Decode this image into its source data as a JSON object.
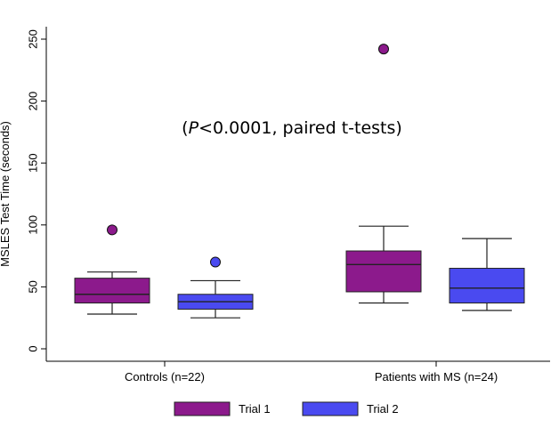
{
  "chart_data": {
    "type": "box",
    "ylabel": "MSLES Test Time (seconds)",
    "ylim": [
      0,
      260
    ],
    "yticks": [
      0,
      50,
      100,
      150,
      200,
      250
    ],
    "categories": [
      "Controls (n=22)",
      "Patients with MS (n=24)"
    ],
    "annotation": {
      "prefix": "(",
      "italic": "P",
      "suffix": "<0.0001, paired t-tests)"
    },
    "series": [
      {
        "name": "Trial 1",
        "color": "#8c1a8c",
        "boxes": [
          {
            "whisker_low": 28,
            "q1": 37,
            "median": 44,
            "q3": 57,
            "whisker_high": 62,
            "outliers": [
              96
            ]
          },
          {
            "whisker_low": 37,
            "q1": 46,
            "median": 68,
            "q3": 79,
            "whisker_high": 99,
            "outliers": [
              242
            ]
          }
        ]
      },
      {
        "name": "Trial 2",
        "color": "#4a4af0",
        "boxes": [
          {
            "whisker_low": 25,
            "q1": 32,
            "median": 38,
            "q3": 44,
            "whisker_high": 55,
            "outliers": [
              70
            ]
          },
          {
            "whisker_low": 31,
            "q1": 37,
            "median": 49,
            "q3": 65,
            "whisker_high": 89,
            "outliers": []
          }
        ]
      }
    ],
    "legend": {
      "position": "bottom"
    }
  }
}
